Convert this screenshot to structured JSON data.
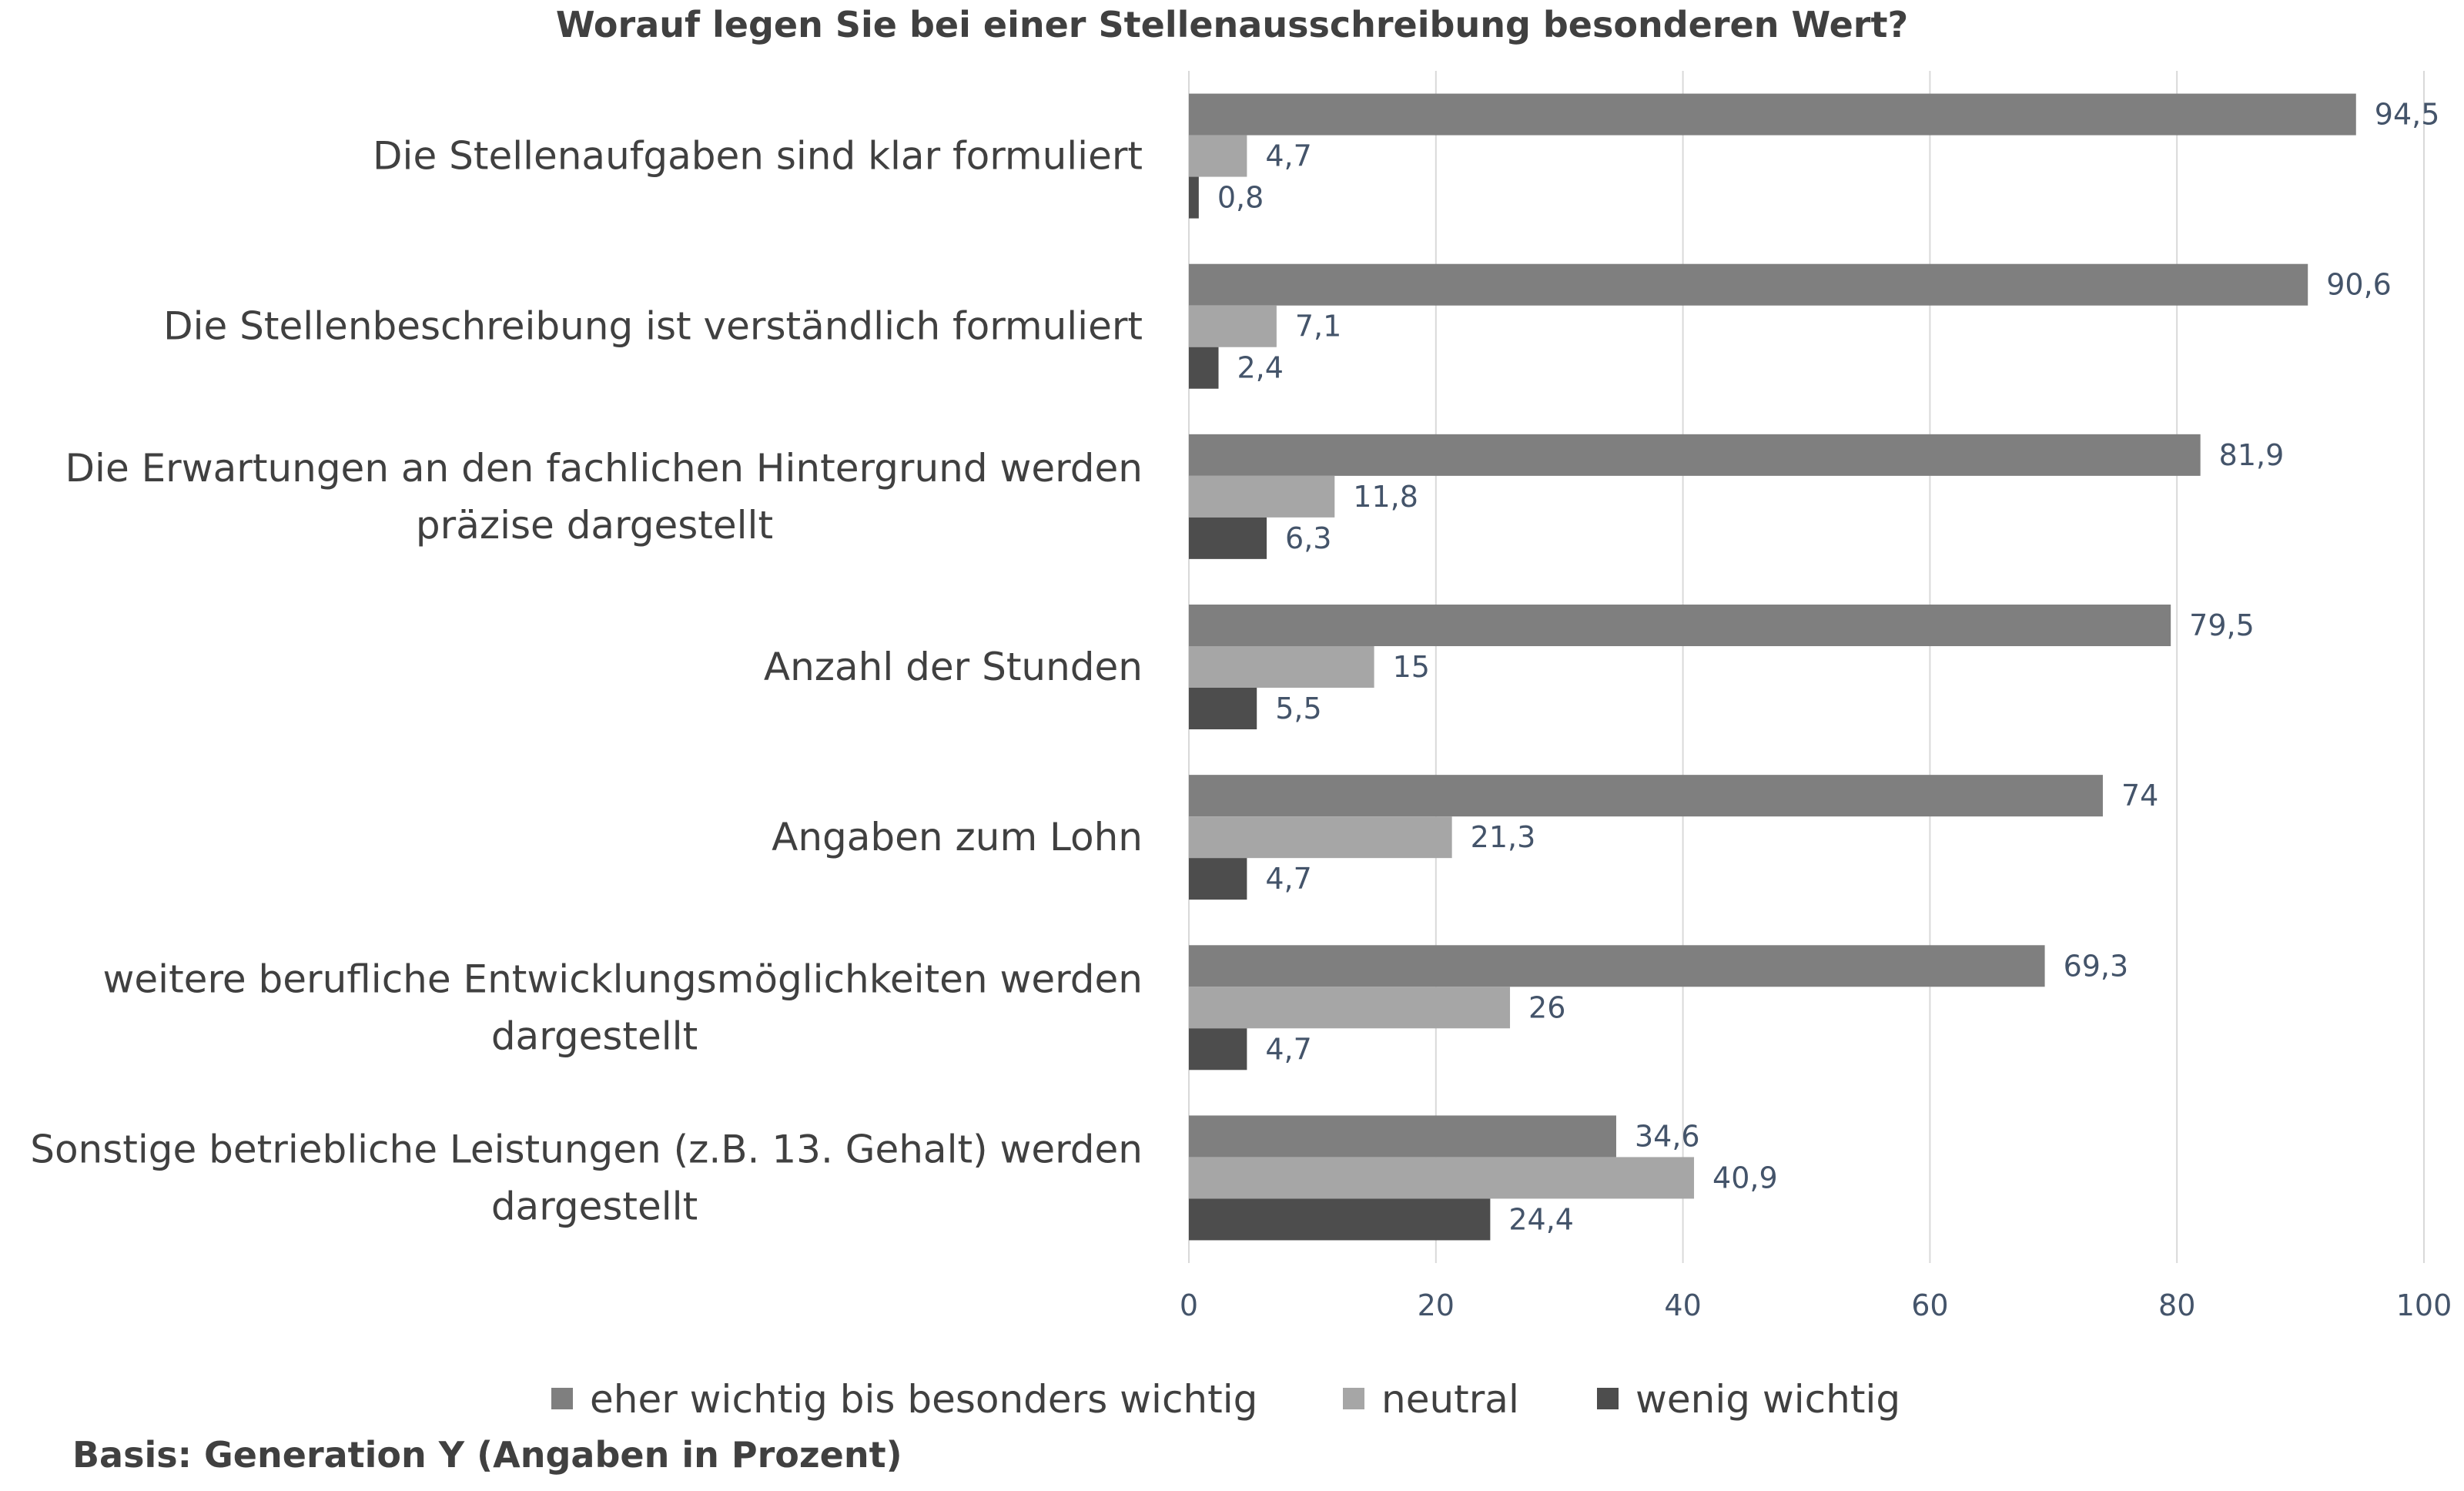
{
  "chart_data": {
    "type": "bar",
    "orientation": "horizontal",
    "title": "Worauf legen Sie bei einer Stellenausschreibung besonderen Wert?",
    "categories": [
      "Die Stellenaufgaben sind klar formuliert",
      "Die Stellenbeschreibung ist verständlich formuliert",
      "Die Erwartungen an den fachlichen Hintergrund werden präzise dargestellt",
      "Anzahl der Stunden",
      "Angaben zum Lohn",
      "weitere berufliche Entwicklungsmöglichkeiten werden dargestellt",
      "Sonstige betriebliche Leistungen (z.B. 13. Gehalt) werden dargestellt"
    ],
    "category_lines": [
      [
        "Die Stellenaufgaben sind klar formuliert"
      ],
      [
        "Die Stellenbeschreibung ist verständlich formuliert"
      ],
      [
        "Die Erwartungen an den fachlichen Hintergrund werden",
        "präzise dargestellt"
      ],
      [
        "Anzahl der Stunden"
      ],
      [
        "Angaben zum Lohn"
      ],
      [
        "weitere berufliche Entwicklungsmöglichkeiten werden",
        "dargestellt"
      ],
      [
        "Sonstige betriebliche Leistungen (z.B. 13. Gehalt) werden",
        "dargestellt"
      ]
    ],
    "series": [
      {
        "name": "eher wichtig bis besonders wichtig",
        "color": "#7f7f7f",
        "values": [
          94.5,
          90.6,
          81.9,
          79.5,
          74,
          69.3,
          34.6
        ],
        "labels": [
          "94,5",
          "90,6",
          "81,9",
          "79,5",
          "74",
          "69,3",
          "34,6"
        ]
      },
      {
        "name": "neutral",
        "color": "#a6a6a6",
        "values": [
          4.7,
          7.1,
          11.8,
          15,
          21.3,
          26,
          40.9
        ],
        "labels": [
          "4,7",
          "7,1",
          "11,8",
          "15",
          "21,3",
          "26",
          "40,9"
        ]
      },
      {
        "name": "wenig wichtig",
        "color": "#4d4d4d",
        "values": [
          0.8,
          2.4,
          6.3,
          5.5,
          4.7,
          4.7,
          24.4
        ],
        "labels": [
          "0,8",
          "2,4",
          "6,3",
          "5,5",
          "4,7",
          "4,7",
          "24,4"
        ]
      }
    ],
    "xlim": [
      0,
      100
    ],
    "xticks": [
      0,
      20,
      40,
      60,
      80,
      100
    ],
    "xtick_labels": [
      "0",
      "20",
      "40",
      "60",
      "80",
      "100"
    ],
    "xlabel": "",
    "ylabel": "",
    "grid": "vertical",
    "legend": "bottom",
    "footnote": "Basis: Generation Y (Angaben in Prozent)"
  }
}
